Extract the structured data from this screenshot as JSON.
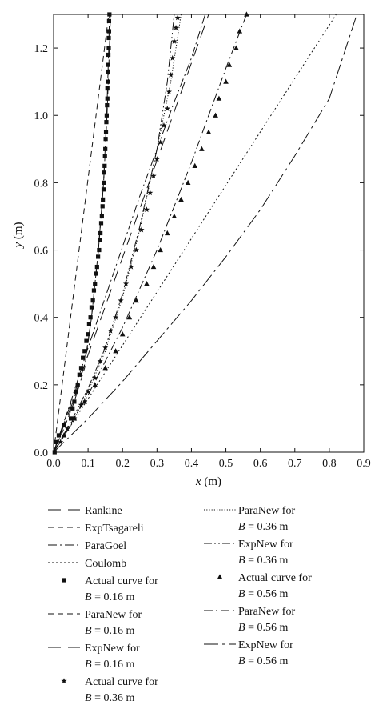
{
  "chart_data": {
    "type": "line",
    "xlabel": {
      "var": "x",
      "unit": " (m)"
    },
    "ylabel": {
      "var": "y",
      "unit": " (m)"
    },
    "xlim": [
      0,
      0.9
    ],
    "ylim": [
      0,
      1.3
    ],
    "xticks": [
      "0.0",
      "0.1",
      "0.2",
      "0.3",
      "0.4",
      "0.5",
      "0.6",
      "0.7",
      "0.8",
      "0.9"
    ],
    "yticks": [
      "0.0",
      "0.2",
      "0.4",
      "0.6",
      "0.8",
      "1.0",
      "1.2"
    ],
    "grid": false,
    "legend_position": "below",
    "series": [
      {
        "name": "Rankine",
        "kind": "line",
        "style": "longdash",
        "points": [
          [
            0,
            0
          ],
          [
            0.45,
            1.3
          ]
        ]
      },
      {
        "name": "ExpTsagareli",
        "kind": "line",
        "style": "dash",
        "points": [
          [
            0,
            0
          ],
          [
            0.16,
            1.3
          ]
        ]
      },
      {
        "name": "ParaGoel",
        "kind": "line",
        "style": "dashdot",
        "points": [
          [
            0,
            0
          ],
          [
            0.05,
            0.15
          ],
          [
            0.1,
            0.31
          ],
          [
            0.15,
            0.46
          ],
          [
            0.2,
            0.61
          ],
          [
            0.25,
            0.76
          ],
          [
            0.3,
            0.9
          ],
          [
            0.35,
            1.04
          ],
          [
            0.4,
            1.17
          ],
          [
            0.44,
            1.3
          ]
        ]
      },
      {
        "name": "Coulomb",
        "kind": "line",
        "style": "dot",
        "points": [
          [
            0,
            0
          ],
          [
            0.82,
            1.3
          ]
        ]
      },
      {
        "name": "Actual curve for",
        "name_line2": {
          "pre": "B",
          "post": " = 0.16 m"
        },
        "kind": "marker",
        "marker": "square",
        "points": [
          [
            0.003,
            0.0
          ],
          [
            0.006,
            0.03
          ],
          [
            0.015,
            0.05
          ],
          [
            0.03,
            0.08
          ],
          [
            0.05,
            0.1
          ],
          [
            0.055,
            0.13
          ],
          [
            0.06,
            0.15
          ],
          [
            0.065,
            0.18
          ],
          [
            0.07,
            0.2
          ],
          [
            0.075,
            0.23
          ],
          [
            0.08,
            0.25
          ],
          [
            0.085,
            0.28
          ],
          [
            0.09,
            0.3
          ],
          [
            0.095,
            0.33
          ],
          [
            0.1,
            0.35
          ],
          [
            0.103,
            0.38
          ],
          [
            0.107,
            0.4
          ],
          [
            0.11,
            0.43
          ],
          [
            0.114,
            0.45
          ],
          [
            0.117,
            0.48
          ],
          [
            0.12,
            0.5
          ],
          [
            0.123,
            0.53
          ],
          [
            0.126,
            0.55
          ],
          [
            0.129,
            0.58
          ],
          [
            0.132,
            0.6
          ],
          [
            0.134,
            0.63
          ],
          [
            0.136,
            0.65
          ],
          [
            0.138,
            0.68
          ],
          [
            0.14,
            0.7
          ],
          [
            0.142,
            0.73
          ],
          [
            0.143,
            0.75
          ],
          [
            0.145,
            0.78
          ],
          [
            0.146,
            0.8
          ],
          [
            0.147,
            0.83
          ],
          [
            0.148,
            0.85
          ],
          [
            0.149,
            0.88
          ],
          [
            0.15,
            0.9
          ],
          [
            0.151,
            0.93
          ],
          [
            0.152,
            0.95
          ],
          [
            0.153,
            0.98
          ],
          [
            0.154,
            1.0
          ],
          [
            0.155,
            1.03
          ],
          [
            0.156,
            1.05
          ],
          [
            0.156,
            1.08
          ],
          [
            0.157,
            1.1
          ],
          [
            0.158,
            1.13
          ],
          [
            0.158,
            1.15
          ],
          [
            0.159,
            1.18
          ],
          [
            0.16,
            1.2
          ],
          [
            0.16,
            1.23
          ],
          [
            0.161,
            1.25
          ],
          [
            0.161,
            1.28
          ],
          [
            0.162,
            1.3
          ]
        ]
      },
      {
        "name": "ParaNew for",
        "name_line2": {
          "pre": "B",
          "post": " = 0.16 m"
        },
        "kind": "line",
        "style": "dash",
        "points": [
          [
            0,
            0
          ],
          [
            0.03,
            0.07
          ],
          [
            0.06,
            0.15
          ],
          [
            0.09,
            0.25
          ],
          [
            0.11,
            0.4
          ],
          [
            0.13,
            0.6
          ],
          [
            0.145,
            0.8
          ],
          [
            0.155,
            1.0
          ],
          [
            0.162,
            1.2
          ],
          [
            0.165,
            1.3
          ]
        ]
      },
      {
        "name": "ExpNew for",
        "name_line2": {
          "pre": "B",
          "post": " = 0.16 m"
        },
        "kind": "line",
        "style": "longdash",
        "points": [
          [
            0,
            0
          ],
          [
            0.03,
            0.08
          ],
          [
            0.06,
            0.16
          ],
          [
            0.09,
            0.26
          ],
          [
            0.11,
            0.4
          ],
          [
            0.13,
            0.6
          ],
          [
            0.145,
            0.8
          ],
          [
            0.154,
            1.0
          ],
          [
            0.16,
            1.2
          ],
          [
            0.162,
            1.3
          ]
        ]
      },
      {
        "name": "Actual curve for",
        "name_line2": {
          "pre": "B",
          "post": " = 0.36 m"
        },
        "kind": "marker",
        "marker": "star",
        "points": [
          [
            0.02,
            0.03
          ],
          [
            0.04,
            0.07
          ],
          [
            0.06,
            0.1
          ],
          [
            0.08,
            0.14
          ],
          [
            0.1,
            0.18
          ],
          [
            0.12,
            0.22
          ],
          [
            0.135,
            0.27
          ],
          [
            0.15,
            0.31
          ],
          [
            0.165,
            0.36
          ],
          [
            0.18,
            0.4
          ],
          [
            0.195,
            0.45
          ],
          [
            0.21,
            0.5
          ],
          [
            0.225,
            0.55
          ],
          [
            0.24,
            0.6
          ],
          [
            0.255,
            0.66
          ],
          [
            0.27,
            0.72
          ],
          [
            0.28,
            0.77
          ],
          [
            0.29,
            0.82
          ],
          [
            0.3,
            0.87
          ],
          [
            0.31,
            0.92
          ],
          [
            0.32,
            0.97
          ],
          [
            0.33,
            1.02
          ],
          [
            0.335,
            1.07
          ],
          [
            0.34,
            1.12
          ],
          [
            0.345,
            1.17
          ],
          [
            0.35,
            1.22
          ],
          [
            0.355,
            1.26
          ],
          [
            0.36,
            1.29
          ]
        ]
      },
      {
        "name": "ParaNew for",
        "name_line2": {
          "pre": "B",
          "post": " = 0.36 m"
        },
        "kind": "line",
        "style": "fine-dot",
        "points": [
          [
            0,
            0
          ],
          [
            0.05,
            0.08
          ],
          [
            0.1,
            0.18
          ],
          [
            0.15,
            0.3
          ],
          [
            0.2,
            0.46
          ],
          [
            0.25,
            0.66
          ],
          [
            0.3,
            0.9
          ],
          [
            0.34,
            1.1
          ],
          [
            0.37,
            1.3
          ]
        ]
      },
      {
        "name": "ExpNew for",
        "name_line2": {
          "pre": "B",
          "post": " = 0.36 m"
        },
        "kind": "line",
        "style": "dashdotdot",
        "points": [
          [
            0,
            0
          ],
          [
            0.05,
            0.09
          ],
          [
            0.1,
            0.19
          ],
          [
            0.15,
            0.31
          ],
          [
            0.2,
            0.47
          ],
          [
            0.25,
            0.67
          ],
          [
            0.3,
            0.9
          ],
          [
            0.33,
            1.1
          ],
          [
            0.35,
            1.3
          ]
        ]
      },
      {
        "name": "Actual curve for",
        "name_line2": {
          "pre": "B",
          "post": " = 0.56 m"
        },
        "kind": "marker",
        "marker": "triangle",
        "points": [
          [
            0.03,
            0.05
          ],
          [
            0.06,
            0.1
          ],
          [
            0.09,
            0.15
          ],
          [
            0.12,
            0.2
          ],
          [
            0.15,
            0.25
          ],
          [
            0.18,
            0.3
          ],
          [
            0.2,
            0.35
          ],
          [
            0.22,
            0.4
          ],
          [
            0.24,
            0.45
          ],
          [
            0.27,
            0.5
          ],
          [
            0.29,
            0.55
          ],
          [
            0.31,
            0.6
          ],
          [
            0.33,
            0.65
          ],
          [
            0.35,
            0.7
          ],
          [
            0.37,
            0.75
          ],
          [
            0.39,
            0.8
          ],
          [
            0.41,
            0.85
          ],
          [
            0.43,
            0.9
          ],
          [
            0.45,
            0.95
          ],
          [
            0.47,
            1.0
          ],
          [
            0.48,
            1.05
          ],
          [
            0.5,
            1.1
          ],
          [
            0.51,
            1.15
          ],
          [
            0.53,
            1.2
          ],
          [
            0.54,
            1.25
          ],
          [
            0.56,
            1.3
          ]
        ]
      },
      {
        "name": "ParaNew for",
        "name_line2": {
          "pre": "B",
          "post": " = 0.56 m"
        },
        "kind": "line",
        "style": "dashdot",
        "points": [
          [
            0,
            0
          ],
          [
            0.1,
            0.17
          ],
          [
            0.2,
            0.37
          ],
          [
            0.3,
            0.6
          ],
          [
            0.4,
            0.86
          ],
          [
            0.5,
            1.14
          ],
          [
            0.56,
            1.3
          ]
        ]
      },
      {
        "name": "ExpNew for",
        "name_line2": {
          "pre": "B",
          "post": " = 0.56 m"
        },
        "kind": "line",
        "style": "longdashdot",
        "points": [
          [
            0,
            0
          ],
          [
            0.1,
            0.1
          ],
          [
            0.2,
            0.21
          ],
          [
            0.3,
            0.33
          ],
          [
            0.4,
            0.45
          ],
          [
            0.5,
            0.58
          ],
          [
            0.6,
            0.72
          ],
          [
            0.7,
            0.88
          ],
          [
            0.8,
            1.05
          ],
          [
            0.88,
            1.3
          ]
        ]
      }
    ]
  }
}
